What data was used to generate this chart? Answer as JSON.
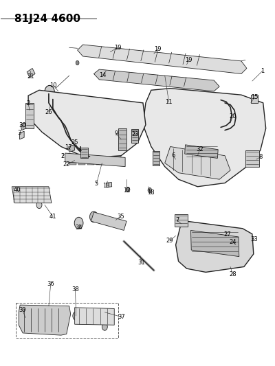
{
  "title": "81J24 4600",
  "bg_color": "#ffffff",
  "line_color": "#222222",
  "title_fontsize": 11,
  "fig_width": 4.0,
  "fig_height": 5.33,
  "dpi": 100
}
